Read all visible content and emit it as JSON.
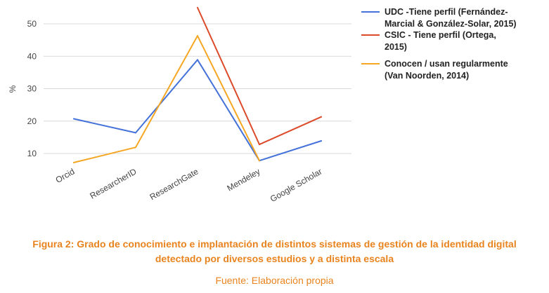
{
  "chart_data": {
    "type": "line",
    "categories": [
      "Orcid",
      "ResearcherID",
      "ResearchGate",
      "Mendeley",
      "Google Scholar"
    ],
    "ylabel": "%",
    "xlabel": "",
    "title": "",
    "ylim": [
      3,
      55
    ],
    "yticks": [
      10,
      20,
      30,
      40,
      50
    ],
    "grid": true,
    "legend_position": "right",
    "series": [
      {
        "name": "UDC -Tiene perfil (Fernández-Marcial & González-Solar, 2015)",
        "legend_lines": [
          "UDC -Tiene perfil (Fernández-",
          "Marcial & González-Solar, 2015)"
        ],
        "color": "#4472d9",
        "values": [
          20.7,
          16.4,
          38.9,
          7.8,
          13.9
        ]
      },
      {
        "name": "CSIC - Tiene perfil (Ortega, 2015)",
        "legend_lines": [
          "CSIC - Tiene perfil (Ortega,",
          "2015)"
        ],
        "color": "#dc4a2a",
        "values": [
          null,
          null,
          55,
          12.8,
          21.3
        ]
      },
      {
        "name": "Conocen / usan regularmente (Van Noorden, 2014)",
        "legend_lines": [
          "Conocen / usan regularmente",
          "(Van Noorden, 2014)"
        ],
        "color": "#f5a623",
        "values": [
          7.2,
          11.9,
          46.3,
          7.8,
          null
        ]
      }
    ]
  },
  "caption": {
    "line1": "Figura 2: Grado de conocimiento e implantación de distintos sistemas de gestión de la identidad digital",
    "line2": "detectado por diversos estudios y a distinta escala"
  },
  "source": "Fuente: Elaboración propia"
}
